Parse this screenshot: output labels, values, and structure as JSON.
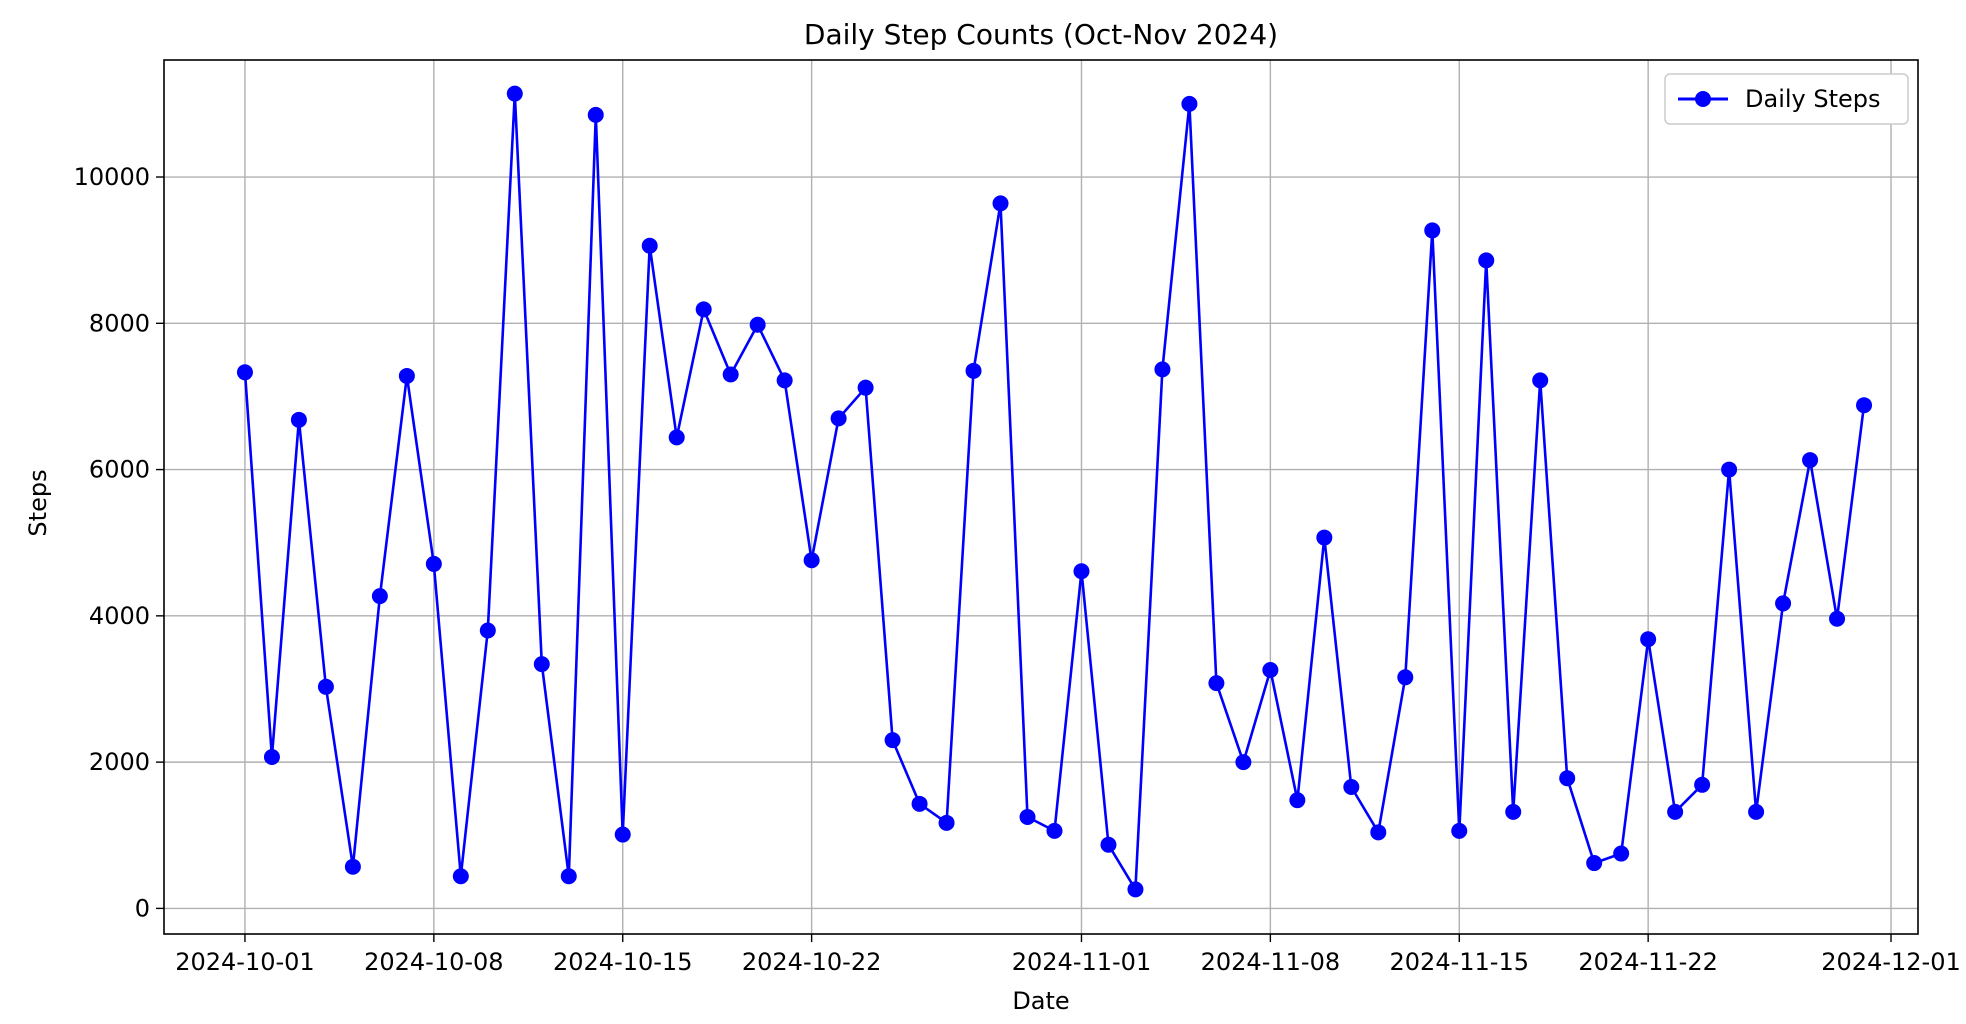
{
  "chart_data": {
    "type": "line",
    "title": "Daily Step Counts (Oct-Nov 2024)",
    "xlabel": "Date",
    "ylabel": "Steps",
    "xlim": [
      "2024-09-28",
      "2024-12-02"
    ],
    "ylim": [
      -350,
      11600
    ],
    "x_ticks": [
      "2024-10-01",
      "2024-10-08",
      "2024-10-15",
      "2024-10-22",
      "2024-11-01",
      "2024-11-08",
      "2024-11-15",
      "2024-11-22",
      "2024-12-01"
    ],
    "y_ticks": [
      0,
      2000,
      4000,
      6000,
      8000,
      10000
    ],
    "grid": true,
    "legend_position": "top-right",
    "series": [
      {
        "name": "Daily Steps",
        "color": "#0000ff",
        "marker": "circle",
        "x": [
          "2024-10-01",
          "2024-10-02",
          "2024-10-03",
          "2024-10-04",
          "2024-10-05",
          "2024-10-06",
          "2024-10-07",
          "2024-10-08",
          "2024-10-09",
          "2024-10-10",
          "2024-10-11",
          "2024-10-12",
          "2024-10-13",
          "2024-10-14",
          "2024-10-15",
          "2024-10-16",
          "2024-10-17",
          "2024-10-18",
          "2024-10-19",
          "2024-10-20",
          "2024-10-21",
          "2024-10-22",
          "2024-10-23",
          "2024-10-24",
          "2024-10-25",
          "2024-10-26",
          "2024-10-27",
          "2024-10-28",
          "2024-10-29",
          "2024-10-30",
          "2024-10-31",
          "2024-11-01",
          "2024-11-02",
          "2024-11-03",
          "2024-11-04",
          "2024-11-05",
          "2024-11-06",
          "2024-11-07",
          "2024-11-08",
          "2024-11-09",
          "2024-11-10",
          "2024-11-11",
          "2024-11-12",
          "2024-11-13",
          "2024-11-14",
          "2024-11-15",
          "2024-11-16",
          "2024-11-17",
          "2024-11-18",
          "2024-11-19",
          "2024-11-20",
          "2024-11-21",
          "2024-11-22",
          "2024-11-23",
          "2024-11-24",
          "2024-11-25",
          "2024-11-26",
          "2024-11-27",
          "2024-11-28",
          "2024-11-29",
          "2024-11-30"
        ],
        "values": [
          7330,
          2070,
          6680,
          3030,
          570,
          4270,
          7280,
          4710,
          440,
          3800,
          11140,
          3340,
          440,
          10850,
          1010,
          9060,
          6440,
          8190,
          7300,
          7980,
          7220,
          4760,
          6700,
          7120,
          2300,
          1430,
          1170,
          7350,
          9640,
          1250,
          1060,
          4610,
          870,
          260,
          7370,
          11000,
          3080,
          2000,
          3260,
          1480,
          5070,
          1660,
          1040,
          3160,
          9270,
          1060,
          8860,
          1320,
          7220,
          1780,
          620,
          750,
          3680,
          1320,
          1690,
          6000,
          1320,
          4170,
          6130,
          3960,
          6880
        ]
      }
    ]
  }
}
